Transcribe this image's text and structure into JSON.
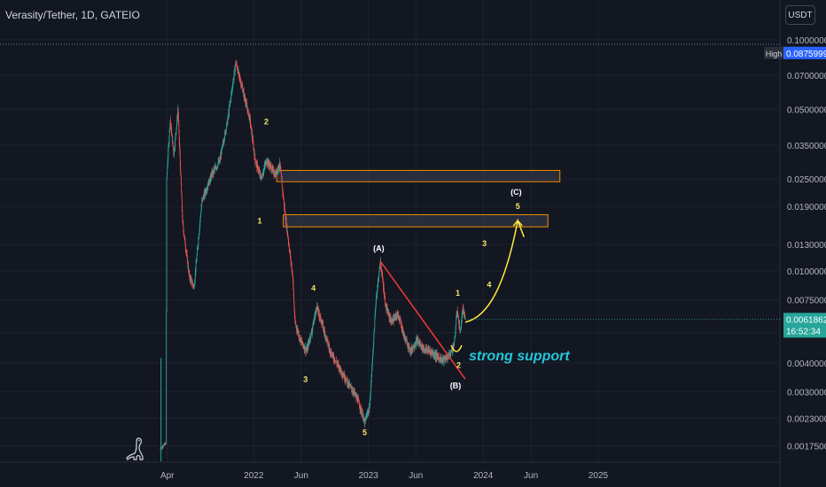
{
  "header": {
    "title": "Verasity/Tether, 1D, GATEIO",
    "currency": "USDT"
  },
  "colors": {
    "background": "#131722",
    "up": "#26a69a",
    "down": "#ef5350",
    "wave_label": "#f5e663",
    "trendline": "#e53935",
    "zone_fill": "#3a3f52",
    "zone_border": "#f08c00",
    "projection": "#ffeb3b",
    "support_text": "#22c7d8",
    "price_badge": "#26a69a",
    "high_badge": "#2962ff"
  },
  "chart_data": {
    "type": "candlestick",
    "title": "Verasity/Tether, 1D, GATEIO",
    "y_scale": "log",
    "ylim": [
      0.0015,
      0.11
    ],
    "y_ticks": [
      "0.1000000",
      "0.0700000",
      "0.0500000",
      "0.0350000",
      "0.0250000",
      "0.0190000",
      "0.0130000",
      "0.0100000",
      "0.0075000",
      "0.0054000",
      "0.0040000",
      "0.0030000",
      "0.0023000",
      "0.0017500"
    ],
    "x_ticks": [
      "Apr",
      "2022",
      "Jun",
      "2023",
      "Jun",
      "2024",
      "Jun",
      "2025"
    ],
    "price_path": [
      [
        "2021-03-10",
        0.0017
      ],
      [
        "2021-03-28",
        0.0018
      ],
      [
        "2021-03-30",
        0.025
      ],
      [
        "2021-04-10",
        0.045
      ],
      [
        "2021-04-22",
        0.032
      ],
      [
        "2021-05-05",
        0.05
      ],
      [
        "2021-05-20",
        0.016
      ],
      [
        "2021-06-10",
        0.0095
      ],
      [
        "2021-06-25",
        0.0085
      ],
      [
        "2021-07-20",
        0.02
      ],
      [
        "2021-08-20",
        0.026
      ],
      [
        "2021-09-15",
        0.03
      ],
      [
        "2021-10-10",
        0.045
      ],
      [
        "2021-11-05",
        0.08
      ],
      [
        "2021-11-15",
        0.07
      ],
      [
        "2021-11-28",
        0.06
      ],
      [
        "2021-12-20",
        0.045
      ],
      [
        "2022-01-06",
        0.03
      ],
      [
        "2022-01-25",
        0.025
      ],
      [
        "2022-02-10",
        0.03
      ],
      [
        "2022-02-25",
        0.028
      ],
      [
        "2022-03-10",
        0.026
      ],
      [
        "2022-03-25",
        0.029
      ],
      [
        "2022-04-10",
        0.018
      ],
      [
        "2022-05-05",
        0.0095
      ],
      [
        "2022-05-12",
        0.006
      ],
      [
        "2022-05-30",
        0.005
      ],
      [
        "2022-06-18",
        0.0045
      ],
      [
        "2022-07-05",
        0.0055
      ],
      [
        "2022-07-20",
        0.007
      ],
      [
        "2022-08-05",
        0.006
      ],
      [
        "2022-09-01",
        0.0045
      ],
      [
        "2022-10-01",
        0.0038
      ],
      [
        "2022-11-01",
        0.0032
      ],
      [
        "2022-11-15",
        0.003
      ],
      [
        "2022-12-01",
        0.0027
      ],
      [
        "2022-12-20",
        0.0022
      ],
      [
        "2023-01-05",
        0.0026
      ],
      [
        "2023-01-25",
        0.0075
      ],
      [
        "2023-02-08",
        0.011
      ],
      [
        "2023-02-25",
        0.007
      ],
      [
        "2023-03-15",
        0.006
      ],
      [
        "2023-04-05",
        0.0065
      ],
      [
        "2023-04-25",
        0.0052
      ],
      [
        "2023-05-15",
        0.0045
      ],
      [
        "2023-06-05",
        0.005
      ],
      [
        "2023-06-25",
        0.0046
      ],
      [
        "2023-07-15",
        0.0045
      ],
      [
        "2023-08-05",
        0.0043
      ],
      [
        "2023-08-25",
        0.0041
      ],
      [
        "2023-09-15",
        0.0043
      ],
      [
        "2023-10-01",
        0.0048
      ],
      [
        "2023-10-10",
        0.0068
      ],
      [
        "2023-10-20",
        0.0054
      ],
      [
        "2023-10-28",
        0.0068
      ],
      [
        "2023-11-05",
        0.0062
      ]
    ],
    "all_time_high": "0.0875999",
    "last_price": "0.0061862",
    "countdown": "16:52:34",
    "resistance_zones": [
      {
        "from": "2022-03-15",
        "to": "2024-09-01",
        "low": 0.0243,
        "high": 0.0272
      },
      {
        "from": "2022-04-05",
        "to": "2024-07-25",
        "low": 0.0155,
        "high": 0.0175
      }
    ],
    "trendline": [
      [
        "2023-02-08",
        0.011
      ],
      [
        "2023-11-05",
        0.0034
      ]
    ],
    "projection": [
      [
        "2023-11-05",
        0.006
      ],
      [
        "2024-01-15",
        0.0063
      ],
      [
        "2024-03-10",
        0.0085
      ],
      [
        "2024-04-20",
        0.0165
      ],
      [
        "2024-05-10",
        0.014
      ]
    ],
    "wave_labels": [
      {
        "text": "1",
        "date": "2022-01-20",
        "price": 0.016
      },
      {
        "text": "2",
        "date": "2022-02-10",
        "price": 0.043
      },
      {
        "text": "3",
        "date": "2022-06-15",
        "price": 0.0033
      },
      {
        "text": "4",
        "date": "2022-07-10",
        "price": 0.0082
      },
      {
        "text": "5",
        "date": "2022-12-20",
        "price": 0.00195
      },
      {
        "text": "(A)",
        "date": "2023-02-03",
        "price": 0.0122
      },
      {
        "text": "(B)",
        "date": "2023-10-05",
        "price": 0.0031
      },
      {
        "text": "1",
        "date": "2023-10-12",
        "price": 0.0078
      },
      {
        "text": "2",
        "date": "2023-10-15",
        "price": 0.0038
      },
      {
        "text": "3",
        "date": "2024-01-05",
        "price": 0.0128
      },
      {
        "text": "4",
        "date": "2024-01-20",
        "price": 0.0085
      },
      {
        "text": "(C)",
        "date": "2024-04-15",
        "price": 0.0213
      },
      {
        "text": "5",
        "date": "2024-04-20",
        "price": 0.0185
      }
    ],
    "annotations": [
      {
        "text": "strong support",
        "date": "2023-11-05",
        "price": 0.0041
      }
    ],
    "badges": {
      "high_label": "High"
    }
  }
}
